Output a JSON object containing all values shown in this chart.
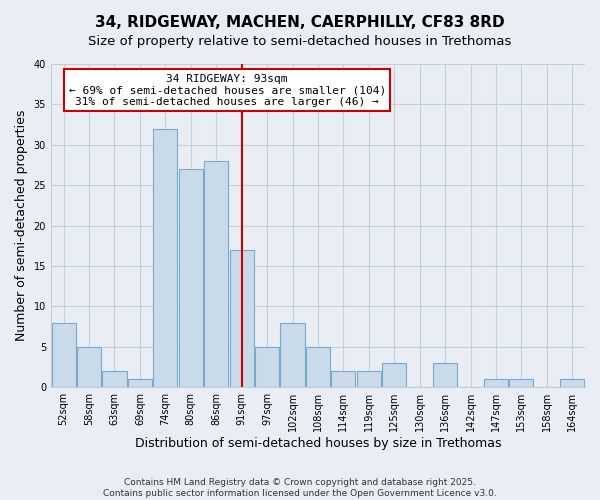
{
  "title": "34, RIDGEWAY, MACHEN, CAERPHILLY, CF83 8RD",
  "subtitle": "Size of property relative to semi-detached houses in Trethomas",
  "xlabel": "Distribution of semi-detached houses by size in Trethomas",
  "ylabel": "Number of semi-detached properties",
  "categories": [
    "52sqm",
    "58sqm",
    "63sqm",
    "69sqm",
    "74sqm",
    "80sqm",
    "86sqm",
    "91sqm",
    "97sqm",
    "102sqm",
    "108sqm",
    "114sqm",
    "119sqm",
    "125sqm",
    "130sqm",
    "136sqm",
    "142sqm",
    "147sqm",
    "153sqm",
    "158sqm",
    "164sqm"
  ],
  "counts": [
    8,
    5,
    2,
    1,
    32,
    27,
    28,
    17,
    5,
    8,
    5,
    2,
    2,
    3,
    0,
    3,
    0,
    1,
    1,
    0,
    1
  ],
  "bar_color": "#c9daea",
  "bar_edge_color": "#7aaac8",
  "marker_bin_index": 7,
  "marker_color": "#cc0000",
  "annotation_title": "34 RIDGEWAY: 93sqm",
  "annotation_line1": "← 69% of semi-detached houses are smaller (104)",
  "annotation_line2": "31% of semi-detached houses are larger (46) →",
  "annotation_box_color": "white",
  "annotation_box_edge": "#cc0000",
  "ylim": [
    0,
    40
  ],
  "yticks": [
    0,
    5,
    10,
    15,
    20,
    25,
    30,
    35,
    40
  ],
  "footer_line1": "Contains HM Land Registry data © Crown copyright and database right 2025.",
  "footer_line2": "Contains public sector information licensed under the Open Government Licence v3.0.",
  "bg_color": "#e8eef4",
  "plot_bg_color": "#e8eef4",
  "grid_color": "#c5cfd8",
  "title_fontsize": 11,
  "subtitle_fontsize": 9.5,
  "axis_label_fontsize": 9,
  "tick_fontsize": 7,
  "annotation_fontsize": 8,
  "footer_fontsize": 6.5
}
